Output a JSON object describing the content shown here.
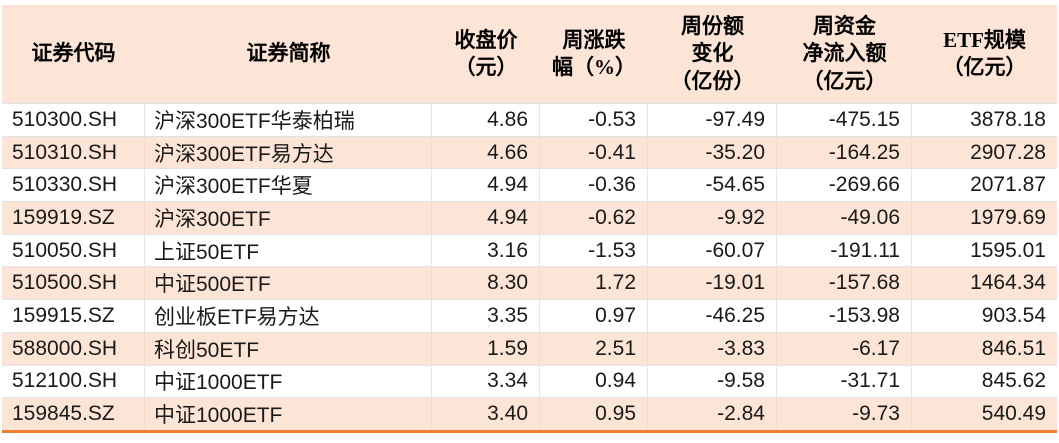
{
  "chart_data": {
    "type": "table",
    "title": "",
    "columns": [
      {
        "key": "code",
        "label": "证券代码",
        "align": "left"
      },
      {
        "key": "name",
        "label": "证券简称",
        "align": "left"
      },
      {
        "key": "close",
        "label": "收盘价\n（元）",
        "align": "right"
      },
      {
        "key": "change",
        "label": "周涨跌\n幅（%）",
        "align": "right"
      },
      {
        "key": "share_change",
        "label": "周份额\n变化\n（亿份）",
        "align": "right"
      },
      {
        "key": "net_inflow",
        "label": "周资金\n净流入额\n（亿元）",
        "align": "right"
      },
      {
        "key": "scale",
        "label": "ETF规模\n（亿元）",
        "align": "right"
      }
    ],
    "rows": [
      {
        "code": "510300.SH",
        "name": "沪深300ETF华泰柏瑞",
        "close": "4.86",
        "change": "-0.53",
        "share_change": "-97.49",
        "net_inflow": "-475.15",
        "scale": "3878.18"
      },
      {
        "code": "510310.SH",
        "name": "沪深300ETF易方达",
        "close": "4.66",
        "change": "-0.41",
        "share_change": "-35.20",
        "net_inflow": "-164.25",
        "scale": "2907.28"
      },
      {
        "code": "510330.SH",
        "name": "沪深300ETF华夏",
        "close": "4.94",
        "change": "-0.36",
        "share_change": "-54.65",
        "net_inflow": "-269.66",
        "scale": "2071.87"
      },
      {
        "code": "159919.SZ",
        "name": "沪深300ETF",
        "close": "4.94",
        "change": "-0.62",
        "share_change": "-9.92",
        "net_inflow": "-49.06",
        "scale": "1979.69"
      },
      {
        "code": "510050.SH",
        "name": "上证50ETF",
        "close": "3.16",
        "change": "-1.53",
        "share_change": "-60.07",
        "net_inflow": "-191.11",
        "scale": "1595.01"
      },
      {
        "code": "510500.SH",
        "name": "中证500ETF",
        "close": "8.30",
        "change": "1.72",
        "share_change": "-19.01",
        "net_inflow": "-157.68",
        "scale": "1464.34"
      },
      {
        "code": "159915.SZ",
        "name": "创业板ETF易方达",
        "close": "3.35",
        "change": "0.97",
        "share_change": "-46.25",
        "net_inflow": "-153.98",
        "scale": "903.54"
      },
      {
        "code": "588000.SH",
        "name": "科创50ETF",
        "close": "1.59",
        "change": "2.51",
        "share_change": "-3.83",
        "net_inflow": "-6.17",
        "scale": "846.51"
      },
      {
        "code": "512100.SH",
        "name": "中证1000ETF",
        "close": "3.34",
        "change": "0.94",
        "share_change": "-9.58",
        "net_inflow": "-31.71",
        "scale": "845.62"
      },
      {
        "code": "159845.SZ",
        "name": "中证1000ETF",
        "close": "3.40",
        "change": "0.95",
        "share_change": "-2.84",
        "net_inflow": "-9.73",
        "scale": "540.49"
      }
    ],
    "layout": {
      "header_bg": "#FCE4D6",
      "band_row_bg": "#FCE4D6",
      "plain_row_bg": "#FFFFFF",
      "grid_border": "#D9D9D9",
      "bottom_rule": "#ED7D31",
      "text_color": "#1A1A1A"
    }
  }
}
